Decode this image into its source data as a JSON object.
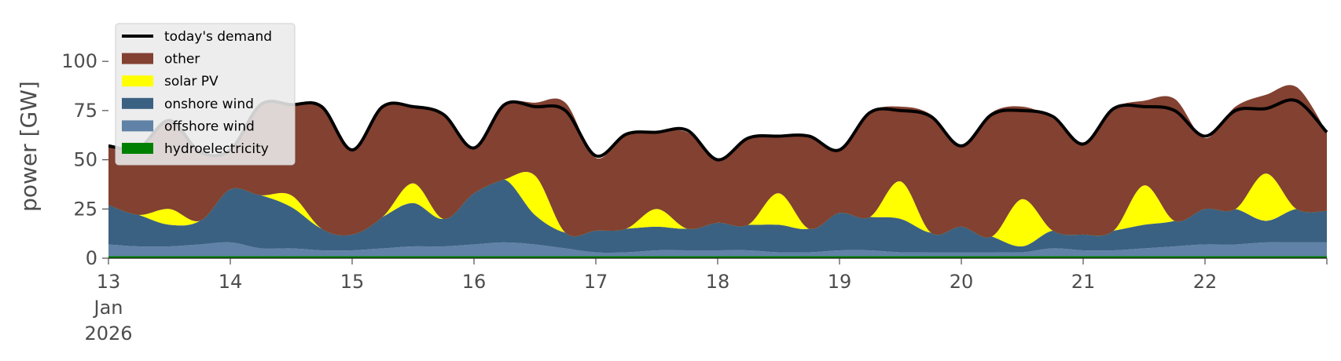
{
  "chart_data": {
    "type": "area",
    "stacked": true,
    "ylabel": "power [GW]",
    "xlabel": "",
    "ylim": [
      0,
      120
    ],
    "xlim": [
      "2026-01-13",
      "2026-01-23"
    ],
    "grid": false,
    "legend_position": "top-left",
    "yticks": [
      0,
      25,
      50,
      75,
      100
    ],
    "xticks": [
      {
        "date": "2026-01-13",
        "lines": [
          "13",
          "Jan",
          "2026"
        ]
      },
      {
        "date": "2026-01-14",
        "lines": [
          "14"
        ]
      },
      {
        "date": "2026-01-15",
        "lines": [
          "15"
        ]
      },
      {
        "date": "2026-01-16",
        "lines": [
          "16"
        ]
      },
      {
        "date": "2026-01-17",
        "lines": [
          "17"
        ]
      },
      {
        "date": "2026-01-18",
        "lines": [
          "18"
        ]
      },
      {
        "date": "2026-01-19",
        "lines": [
          "19"
        ]
      },
      {
        "date": "2026-01-20",
        "lines": [
          "20"
        ]
      },
      {
        "date": "2026-01-21",
        "lines": [
          "21"
        ]
      },
      {
        "date": "2026-01-22",
        "lines": [
          "22"
        ]
      }
    ],
    "x": [
      "2026-01-13 00:00",
      "2026-01-13 06:00",
      "2026-01-13 12:00",
      "2026-01-13 18:00",
      "2026-01-14 00:00",
      "2026-01-14 06:00",
      "2026-01-14 12:00",
      "2026-01-14 18:00",
      "2026-01-15 00:00",
      "2026-01-15 06:00",
      "2026-01-15 12:00",
      "2026-01-15 18:00",
      "2026-01-16 00:00",
      "2026-01-16 06:00",
      "2026-01-16 12:00",
      "2026-01-16 18:00",
      "2026-01-17 00:00",
      "2026-01-17 06:00",
      "2026-01-17 12:00",
      "2026-01-17 18:00",
      "2026-01-18 00:00",
      "2026-01-18 06:00",
      "2026-01-18 12:00",
      "2026-01-18 18:00",
      "2026-01-19 00:00",
      "2026-01-19 06:00",
      "2026-01-19 12:00",
      "2026-01-19 18:00",
      "2026-01-20 00:00",
      "2026-01-20 06:00",
      "2026-01-20 12:00",
      "2026-01-20 18:00",
      "2026-01-21 00:00",
      "2026-01-21 06:00",
      "2026-01-21 12:00",
      "2026-01-21 18:00",
      "2026-01-22 00:00",
      "2026-01-22 06:00",
      "2026-01-22 12:00",
      "2026-01-22 18:00",
      "2026-01-23 00:00"
    ],
    "series": [
      {
        "name": "hydroelectricity",
        "color": "#008000",
        "values": [
          1,
          1,
          1,
          1,
          1,
          1,
          1,
          1,
          1,
          1,
          1,
          1,
          1,
          1,
          1,
          1,
          1,
          1,
          1,
          1,
          1,
          1,
          1,
          1,
          1,
          1,
          1,
          1,
          1,
          1,
          1,
          1,
          1,
          1,
          1,
          1,
          1,
          1,
          1,
          1,
          1
        ]
      },
      {
        "name": "offshore wind",
        "color": "#6082a6",
        "values": [
          6,
          5,
          5,
          6,
          7,
          4,
          4,
          3,
          3,
          4,
          5,
          5,
          6,
          7,
          6,
          4,
          2,
          2,
          3,
          3,
          3,
          3,
          2,
          2,
          3,
          3,
          2,
          2,
          2,
          2,
          2,
          4,
          3,
          3,
          4,
          5,
          6,
          6,
          7,
          7,
          7
        ]
      },
      {
        "name": "onshore wind",
        "color": "#3b6182",
        "values": [
          20,
          16,
          11,
          12,
          27,
          27,
          21,
          11,
          8,
          16,
          22,
          14,
          26,
          32,
          15,
          8,
          11,
          12,
          12,
          11,
          14,
          13,
          14,
          12,
          19,
          17,
          17,
          10,
          13,
          8,
          3,
          9,
          8,
          10,
          12,
          13,
          18,
          18,
          11,
          17,
          16
        ]
      },
      {
        "name": "solar PV",
        "color": "#ffff00",
        "values": [
          0,
          0,
          8,
          0,
          0,
          0,
          6,
          0,
          0,
          0,
          10,
          0,
          0,
          0,
          20,
          0,
          0,
          0,
          9,
          0,
          0,
          0,
          16,
          0,
          0,
          0,
          19,
          0,
          0,
          0,
          24,
          0,
          0,
          0,
          20,
          0,
          0,
          0,
          24,
          0,
          0
        ]
      },
      {
        "name": "other",
        "color": "#824131",
        "values": [
          30,
          34,
          45,
          35,
          20,
          46,
          46,
          62,
          43,
          56,
          39,
          53,
          23,
          38,
          37,
          66,
          37,
          48,
          39,
          49,
          32,
          44,
          29,
          47,
          32,
          53,
          38,
          60,
          41,
          63,
          47,
          57,
          46,
          62,
          43,
          62,
          36,
          52,
          40,
          62,
          40
        ]
      },
      {
        "name": "today's demand",
        "color": "#000000",
        "kind": "line",
        "values": [
          57,
          56,
          70,
          54,
          55,
          78,
          78,
          77,
          55,
          77,
          77,
          73,
          56,
          78,
          77,
          75,
          52,
          63,
          64,
          65,
          50,
          61,
          62,
          62,
          55,
          74,
          75,
          72,
          57,
          73,
          75,
          72,
          58,
          76,
          77,
          75,
          62,
          75,
          76,
          80,
          64
        ]
      }
    ],
    "legend_order": [
      "today's demand",
      "other",
      "solar PV",
      "onshore wind",
      "offshore wind",
      "hydroelectricity"
    ]
  }
}
